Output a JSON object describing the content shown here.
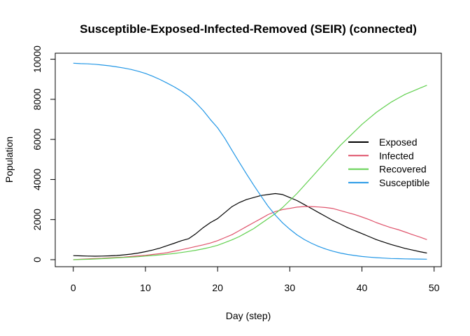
{
  "chart_data": {
    "type": "line",
    "title": "Susceptible-Exposed-Infected-Removed (SEIR) (connected)",
    "xlabel": "Day (step)",
    "ylabel": "Population",
    "xlim": [
      -2.5,
      51
    ],
    "ylim": [
      -350,
      10300
    ],
    "xticks": [
      0,
      10,
      20,
      30,
      40,
      50
    ],
    "yticks": [
      0,
      2000,
      4000,
      6000,
      8000,
      10000
    ],
    "grid": false,
    "legend_position": "right",
    "x": [
      0,
      1,
      2,
      3,
      4,
      5,
      6,
      7,
      8,
      9,
      10,
      11,
      12,
      13,
      14,
      15,
      16,
      17,
      18,
      19,
      20,
      21,
      22,
      23,
      24,
      25,
      26,
      27,
      28,
      29,
      30,
      31,
      32,
      33,
      34,
      35,
      36,
      37,
      38,
      39,
      40,
      41,
      42,
      43,
      44,
      45,
      46,
      47,
      48,
      49
    ],
    "series": [
      {
        "name": "Exposed",
        "color": "#000000",
        "values": [
          200,
          190,
          180,
          175,
          180,
          190,
          210,
          240,
          280,
          330,
          400,
          480,
          580,
          700,
          820,
          950,
          1050,
          1300,
          1600,
          1850,
          2050,
          2350,
          2650,
          2850,
          3000,
          3100,
          3200,
          3250,
          3300,
          3250,
          3100,
          2950,
          2750,
          2550,
          2350,
          2150,
          1950,
          1780,
          1600,
          1450,
          1300,
          1150,
          1000,
          880,
          760,
          660,
          560,
          480,
          400,
          330
        ]
      },
      {
        "name": "Infected",
        "color": "#df536b",
        "values": [
          0,
          20,
          40,
          60,
          70,
          90,
          110,
          130,
          160,
          190,
          220,
          260,
          300,
          350,
          420,
          500,
          580,
          660,
          740,
          830,
          950,
          1100,
          1250,
          1450,
          1650,
          1850,
          2050,
          2250,
          2400,
          2500,
          2560,
          2620,
          2650,
          2650,
          2630,
          2600,
          2550,
          2450,
          2350,
          2250,
          2130,
          2000,
          1850,
          1720,
          1600,
          1500,
          1380,
          1250,
          1130,
          1000
        ]
      },
      {
        "name": "Recovered",
        "color": "#61d04f",
        "values": [
          0,
          10,
          20,
          35,
          50,
          70,
          90,
          110,
          130,
          150,
          180,
          210,
          240,
          270,
          310,
          360,
          410,
          470,
          540,
          620,
          720,
          850,
          990,
          1150,
          1350,
          1550,
          1800,
          2050,
          2300,
          2600,
          2950,
          3300,
          3700,
          4100,
          4500,
          4900,
          5300,
          5700,
          6050,
          6400,
          6750,
          7050,
          7350,
          7600,
          7850,
          8050,
          8250,
          8400,
          8550,
          8700
        ]
      },
      {
        "name": "Susceptible",
        "color": "#2297e6",
        "values": [
          9800,
          9780,
          9770,
          9750,
          9710,
          9670,
          9620,
          9560,
          9490,
          9400,
          9290,
          9150,
          8990,
          8810,
          8620,
          8400,
          8150,
          7820,
          7440,
          6990,
          6580,
          6050,
          5450,
          4860,
          4280,
          3720,
          3180,
          2660,
          2220,
          1840,
          1520,
          1240,
          1010,
          820,
          660,
          530,
          420,
          330,
          260,
          210,
          160,
          130,
          100,
          80,
          60,
          50,
          40,
          35,
          30,
          25
        ]
      }
    ]
  }
}
